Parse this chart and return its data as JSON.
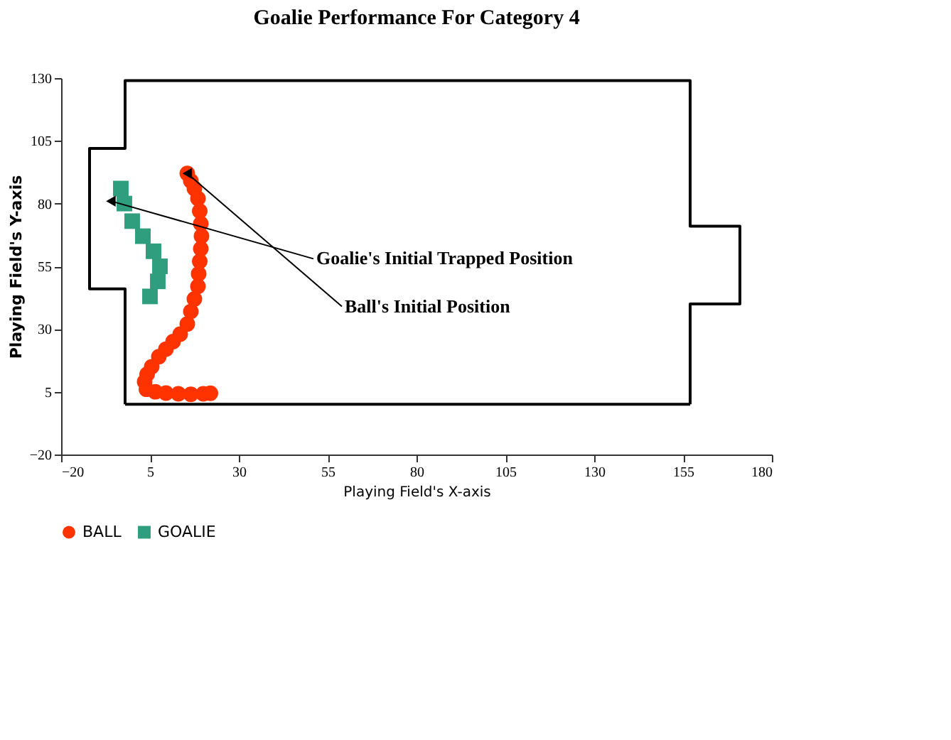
{
  "chart_data": {
    "type": "scatter",
    "title": "Goalie Performance For Category 4",
    "xlabel": "Playing Field's X-axis",
    "ylabel": "Playing Field's Y-axis",
    "xlim": [
      -20,
      180
    ],
    "xticks": [
      -20,
      5,
      30,
      55,
      80,
      105,
      130,
      155,
      180
    ],
    "ylim": [
      -20,
      130
    ],
    "yticks": [
      -20,
      5,
      30,
      55,
      80,
      105,
      130
    ],
    "grid": false,
    "legend": "bottom",
    "series": [
      {
        "type": "line",
        "color": "#000000",
        "marker": "none",
        "x": [
          -2,
          -2,
          -12,
          -12,
          -2,
          -2,
          157,
          157,
          171,
          171,
          157,
          157
        ],
        "values": [
          0,
          46,
          46,
          102,
          102,
          129,
          129,
          71,
          71,
          40,
          40,
          0
        ]
      },
      {
        "type": "line",
        "color": "#000000",
        "marker": "none",
        "x": [
          -2,
          157
        ],
        "values": [
          0,
          0
        ]
      },
      {
        "name": "BALL",
        "color": "#ff3300",
        "marker": "circle",
        "x": [
          15.5,
          16.5,
          17.5,
          18.5,
          19,
          19.3,
          19.5,
          19.3,
          19,
          18.7,
          18.5,
          17.5,
          16.5,
          15.5,
          13.5,
          11.5,
          9.5,
          7.5,
          5.5,
          4.2,
          3.5,
          4,
          6.5,
          9.5,
          13,
          16.5,
          20,
          22
        ],
        "values": [
          92,
          89,
          86,
          82,
          77,
          72,
          67,
          62,
          57,
          52,
          47,
          42,
          37,
          32,
          28,
          25,
          22,
          19,
          15,
          12,
          9,
          6,
          5,
          4.5,
          4.2,
          4,
          4.2,
          4.4
        ]
      },
      {
        "name": "GOALIE",
        "color": "#2e9e7e",
        "marker": "square",
        "x": [
          -3.2,
          -2.2,
          0,
          3,
          6,
          7.8,
          7.2,
          5
        ],
        "values": [
          86,
          80,
          73,
          67,
          61,
          55,
          49,
          43
        ]
      }
    ],
    "annotations": [
      {
        "text": "Goalie's Initial Trapped Position",
        "x": -6,
        "y": 81
      },
      {
        "text": "Ball's Initial Position",
        "x": 15.5,
        "y": 92
      }
    ]
  }
}
